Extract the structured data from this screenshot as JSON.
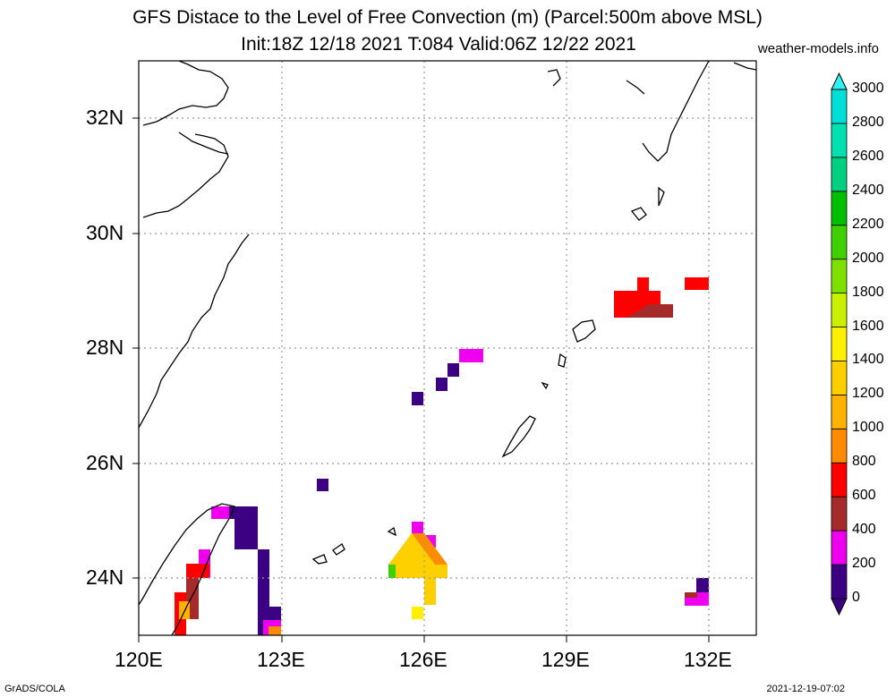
{
  "header": {
    "title_line1": "GFS Distace to the Level of Free Convection (m) (Parcel:500m above MSL)",
    "title_line2": "Init:18Z 12/18 2021 T:084 Valid:06Z 12/22 2021",
    "site": "weather-models.info"
  },
  "footer": {
    "left": "GrADS/COLA",
    "right": "2021-12-19-07:02"
  },
  "map": {
    "lon_range": [
      120,
      132.9
    ],
    "lat_range": [
      23,
      33
    ],
    "lon_ticks": [
      "120E",
      "123E",
      "126E",
      "129E",
      "132E"
    ],
    "lat_ticks": [
      "24N",
      "26N",
      "28N",
      "30N",
      "32N"
    ],
    "grid": true
  },
  "colorbar": {
    "levels": [
      "0",
      "200",
      "400",
      "600",
      "800",
      "1000",
      "1200",
      "1400",
      "1600",
      "1800",
      "2000",
      "2200",
      "2400",
      "2600",
      "2800",
      "3000"
    ],
    "colors": [
      "#3c0082",
      "#ee00ee",
      "#a52a2a",
      "#ff0000",
      "#ff8c00",
      "#ffb300",
      "#ffd000",
      "#fff000",
      "#c8f000",
      "#7ee000",
      "#3ed000",
      "#00c000",
      "#00d080",
      "#00e0b0",
      "#00e0d8",
      "#30f0f0"
    ]
  }
}
